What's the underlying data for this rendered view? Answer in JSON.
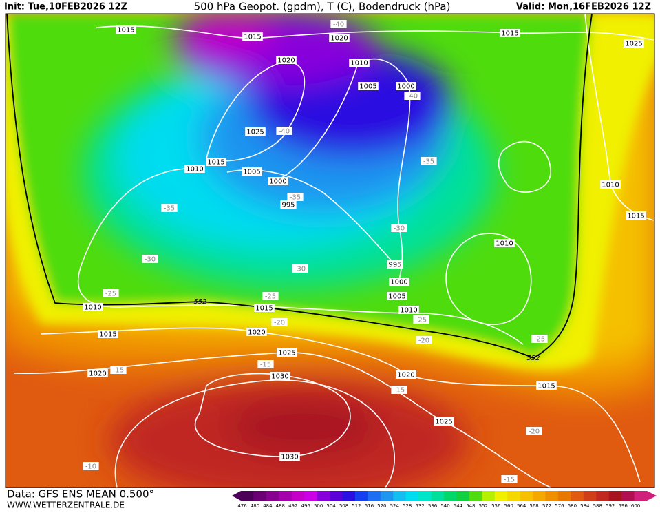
{
  "header": {
    "init": "Init: Tue,10FEB2026 12Z",
    "title": "500 hPa Geopot. (gpdm), T (C), Bodendruck (hPa)",
    "valid": "Valid: Mon,16FEB2026 12Z"
  },
  "map": {
    "isobar_labels": [
      "1015",
      "1015",
      "1020",
      "1015",
      "1025",
      "1020",
      "1010",
      "1005",
      "1000",
      "1025",
      "1015",
      "1010",
      "1005",
      "1000",
      "995",
      "1010",
      "1015",
      "1010",
      "995",
      "1000",
      "1005",
      "1010",
      "1010",
      "1015",
      "1015",
      "1020",
      "1025",
      "1030",
      "1020",
      "1020",
      "1015",
      "1025",
      "1030"
    ],
    "temperature_labels": [
      "-40",
      "-40",
      "-40",
      "-35",
      "-35",
      "-35",
      "-30",
      "-30",
      "-30",
      "-25",
      "-25",
      "-25",
      "-25",
      "-20",
      "-20",
      "-15",
      "-15",
      "-15",
      "-20",
      "-10",
      "-15"
    ],
    "thickness_labels": [
      "552",
      "552"
    ]
  },
  "colorbar": {
    "ticks": [
      476,
      480,
      484,
      488,
      492,
      496,
      500,
      504,
      508,
      512,
      516,
      520,
      524,
      528,
      532,
      536,
      540,
      544,
      548,
      552,
      556,
      560,
      564,
      568,
      572,
      576,
      580,
      584,
      588,
      592,
      596,
      600
    ],
    "colors": [
      "#4c0058",
      "#6a0074",
      "#880090",
      "#a600ac",
      "#c400c8",
      "#cc00e6",
      "#8800dc",
      "#5c00d8",
      "#2a10e0",
      "#1440f0",
      "#1e6ef2",
      "#1e96f0",
      "#14bef0",
      "#00dcf0",
      "#00e6c8",
      "#00e09a",
      "#00d86a",
      "#10d040",
      "#50dc10",
      "#b4f000",
      "#f0f000",
      "#f5d800",
      "#f5c000",
      "#f5a800",
      "#f09000",
      "#e87800",
      "#e05a10",
      "#d04018",
      "#c02820",
      "#a81420",
      "#b01050",
      "#d0207a"
    ]
  },
  "footer": {
    "source": "Data: GFS ENS MEAN 0.500°",
    "website": "WWW.WETTERZENTRALE.DE"
  }
}
